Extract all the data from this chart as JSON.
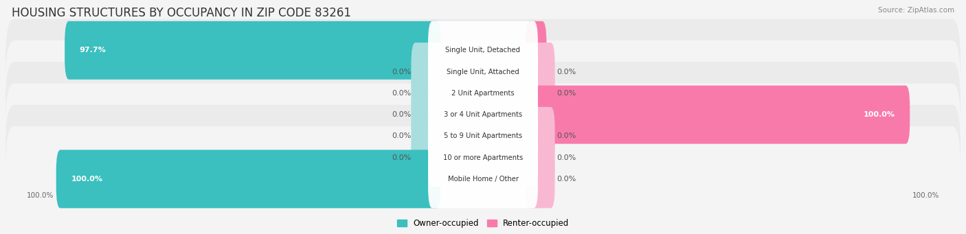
{
  "title": "HOUSING STRUCTURES BY OCCUPANCY IN ZIP CODE 83261",
  "source": "Source: ZipAtlas.com",
  "categories": [
    "Single Unit, Detached",
    "Single Unit, Attached",
    "2 Unit Apartments",
    "3 or 4 Unit Apartments",
    "5 to 9 Unit Apartments",
    "10 or more Apartments",
    "Mobile Home / Other"
  ],
  "owner_pct": [
    97.7,
    0.0,
    0.0,
    0.0,
    0.0,
    0.0,
    100.0
  ],
  "renter_pct": [
    2.3,
    0.0,
    0.0,
    100.0,
    0.0,
    0.0,
    0.0
  ],
  "owner_color": "#3bbfbf",
  "renter_color": "#f87aab",
  "owner_stub_color": "#a8dede",
  "renter_stub_color": "#f9b8d2",
  "owner_label": "Owner-occupied",
  "renter_label": "Renter-occupied",
  "title_fontsize": 12,
  "label_fontsize": 8,
  "bar_value_fontsize": 8,
  "axis_label_pct_left": "100.0%",
  "axis_label_pct_right": "100.0%",
  "row_colors": [
    "#f4f4f4",
    "#ebebeb"
  ],
  "fig_bg": "#f4f4f4"
}
